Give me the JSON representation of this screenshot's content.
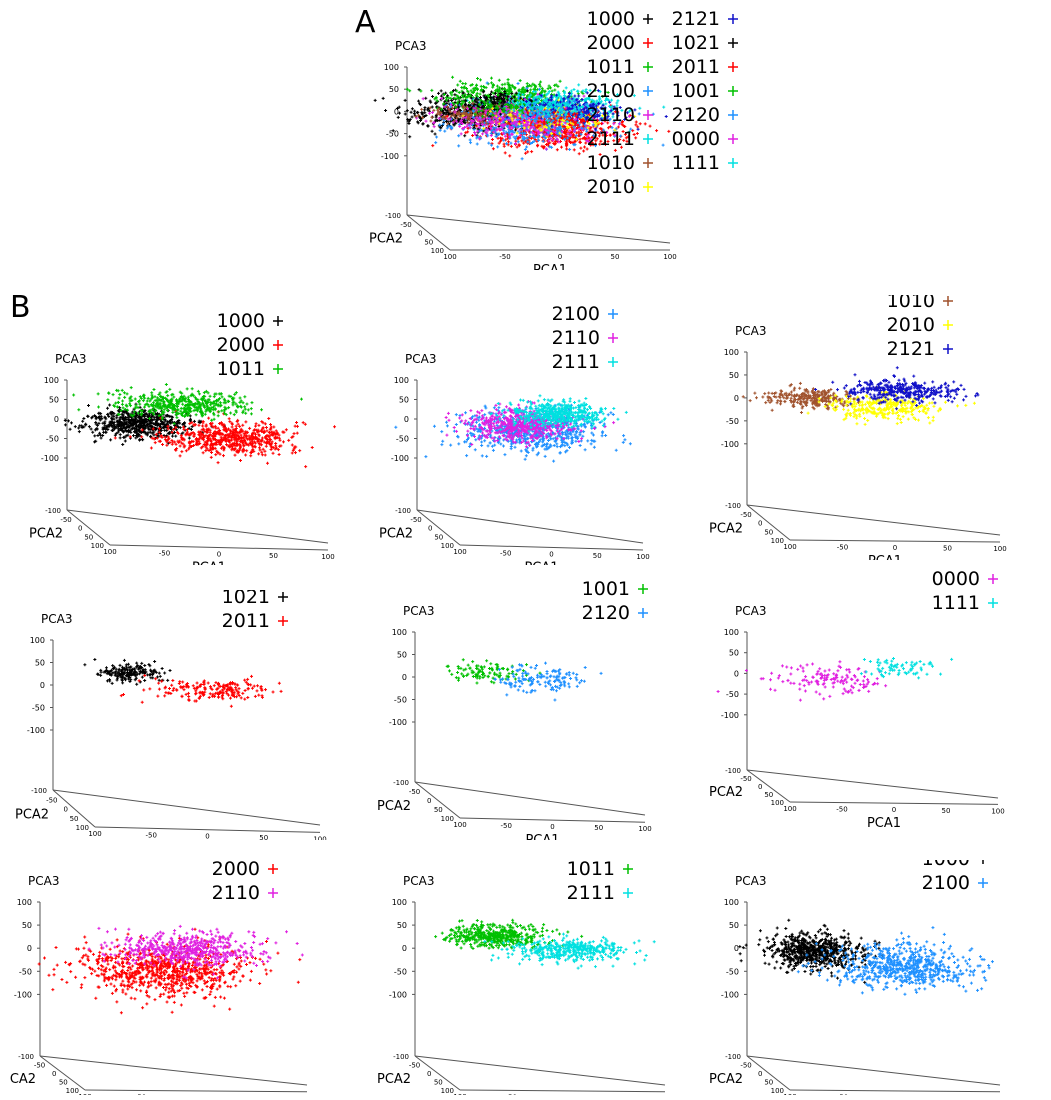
{
  "panel_labels": {
    "a": "A",
    "b": "B"
  },
  "series_colors": {
    "1000": "#000000",
    "2000": "#ff0000",
    "1011": "#00c000",
    "2100": "#1e90ff",
    "2110": "#e020e0",
    "2111": "#00e0e0",
    "1010": "#a0522d",
    "2010": "#ffff00",
    "2121": "#1010c8",
    "1021": "#000000",
    "2011": "#ff0000",
    "1001": "#00c000",
    "2120": "#1e90ff",
    "0000": "#e020e0",
    "1111": "#00e0e0"
  },
  "chart_data": [
    {
      "panel": "A",
      "type": "scatter",
      "title": "",
      "xlabel": "PCA1",
      "ylabel": "PCA2",
      "zlabel": "PCA3",
      "z_ticks": [
        "100",
        "50",
        "0",
        "-50",
        "-100"
      ],
      "y_ticks": [
        "-100",
        "-50",
        "0",
        "50",
        "100"
      ],
      "x_ticks": [
        "100",
        "-50",
        "0",
        "50",
        "100"
      ],
      "legend": "top-right",
      "series": [
        {
          "name": "1000",
          "center": [
            -50,
            -20,
            -10
          ],
          "spread": [
            25,
            15,
            20
          ],
          "count": 500
        },
        {
          "name": "2000",
          "center": [
            10,
            20,
            -40
          ],
          "spread": [
            30,
            20,
            20
          ],
          "count": 500
        },
        {
          "name": "1011",
          "center": [
            -10,
            -30,
            25
          ],
          "spread": [
            30,
            15,
            15
          ],
          "count": 400
        },
        {
          "name": "2100",
          "center": [
            0,
            0,
            -25
          ],
          "spread": [
            35,
            20,
            25
          ],
          "count": 500
        },
        {
          "name": "2110",
          "center": [
            -5,
            0,
            -15
          ],
          "spread": [
            30,
            20,
            20
          ],
          "count": 400
        },
        {
          "name": "2111",
          "center": [
            30,
            -10,
            10
          ],
          "spread": [
            25,
            15,
            15
          ],
          "count": 400
        },
        {
          "name": "1010",
          "center": [
            -55,
            0,
            -5
          ],
          "spread": [
            20,
            10,
            10
          ],
          "count": 120
        },
        {
          "name": "2010",
          "center": [
            10,
            5,
            -15
          ],
          "spread": [
            25,
            15,
            15
          ],
          "count": 150
        },
        {
          "name": "2121",
          "center": [
            40,
            -10,
            0
          ],
          "spread": [
            25,
            15,
            15
          ],
          "count": 200
        },
        {
          "name": "1021",
          "center": [
            -30,
            -10,
            20
          ],
          "spread": [
            15,
            10,
            10
          ],
          "count": 100
        },
        {
          "name": "2011",
          "center": [
            15,
            5,
            -15
          ],
          "spread": [
            20,
            10,
            10
          ],
          "count": 100
        },
        {
          "name": "1001",
          "center": [
            -25,
            0,
            5
          ],
          "spread": [
            15,
            10,
            10
          ],
          "count": 60
        },
        {
          "name": "2120",
          "center": [
            10,
            0,
            -5
          ],
          "spread": [
            20,
            10,
            15
          ],
          "count": 80
        },
        {
          "name": "0000",
          "center": [
            -30,
            0,
            -25
          ],
          "spread": [
            25,
            10,
            20
          ],
          "count": 80
        },
        {
          "name": "1111",
          "center": [
            15,
            0,
            5
          ],
          "spread": [
            15,
            10,
            10
          ],
          "count": 50
        }
      ]
    },
    {
      "panel": "B1",
      "type": "scatter",
      "title": "",
      "xlabel": "PCA1",
      "ylabel": "PCA2",
      "zlabel": "PCA3",
      "z_ticks": [
        "100",
        "50",
        "0",
        "-50",
        "-100"
      ],
      "y_ticks": [
        "-100",
        "-50",
        "0",
        "50",
        "100"
      ],
      "x_ticks": [
        "100",
        "-50",
        "0",
        "50",
        "100"
      ],
      "legend": "top-right",
      "series": [
        {
          "name": "1000",
          "center": [
            -45,
            -10,
            -15
          ],
          "spread": [
            22,
            15,
            18
          ],
          "count": 600
        },
        {
          "name": "2000",
          "center": [
            25,
            15,
            -45
          ],
          "spread": [
            30,
            18,
            20
          ],
          "count": 600
        },
        {
          "name": "1011",
          "center": [
            5,
            -35,
            25
          ],
          "spread": [
            30,
            12,
            15
          ],
          "count": 450
        }
      ]
    },
    {
      "panel": "B2",
      "type": "scatter",
      "title": "",
      "xlabel": "PCA1",
      "ylabel": "PCA2",
      "zlabel": "PCA3",
      "z_ticks": [
        "100",
        "50",
        "0",
        "-50",
        "-100"
      ],
      "y_ticks": [
        "-100",
        "-50",
        "0",
        "50",
        "100"
      ],
      "x_ticks": [
        "100",
        "-50",
        "0",
        "50",
        "100"
      ],
      "legend": "top-right",
      "series": [
        {
          "name": "2100",
          "center": [
            0,
            10,
            -30
          ],
          "spread": [
            35,
            20,
            25
          ],
          "count": 650
        },
        {
          "name": "2110",
          "center": [
            -5,
            0,
            -15
          ],
          "spread": [
            28,
            15,
            20
          ],
          "count": 500
        },
        {
          "name": "2111",
          "center": [
            40,
            -15,
            10
          ],
          "spread": [
            22,
            12,
            15
          ],
          "count": 450
        }
      ]
    },
    {
      "panel": "B3",
      "type": "scatter",
      "title": "",
      "xlabel": "PCA1",
      "ylabel": "PCA2",
      "zlabel": "PCA3",
      "z_ticks": [
        "100",
        "50",
        "0",
        "-50",
        "-100"
      ],
      "y_ticks": [
        "-100",
        "-50",
        "0",
        "50",
        "100"
      ],
      "x_ticks": [
        "100",
        "-50",
        "0",
        "50",
        "100"
      ],
      "legend": "top-right",
      "series": [
        {
          "name": "1010",
          "center": [
            -55,
            0,
            0
          ],
          "spread": [
            20,
            10,
            10
          ],
          "count": 250
        },
        {
          "name": "2010",
          "center": [
            15,
            5,
            -20
          ],
          "spread": [
            25,
            12,
            15
          ],
          "count": 300
        },
        {
          "name": "2121",
          "center": [
            35,
            -15,
            10
          ],
          "spread": [
            25,
            12,
            12
          ],
          "count": 350
        }
      ]
    },
    {
      "panel": "B4",
      "type": "scatter",
      "title": "",
      "xlabel": "PCA1",
      "ylabel": "PCA2",
      "zlabel": "PCA3",
      "z_ticks": [
        "100",
        "50",
        "0",
        "-50",
        "-100"
      ],
      "y_ticks": [
        "-100",
        "-50",
        "0",
        "50",
        "100"
      ],
      "x_ticks": [
        "100",
        "-50",
        "0",
        "50",
        "100"
      ],
      "legend": "top-right",
      "series": [
        {
          "name": "1021",
          "center": [
            -40,
            -10,
            25
          ],
          "spread": [
            15,
            10,
            10
          ],
          "count": 180
        },
        {
          "name": "2011",
          "center": [
            25,
            5,
            -10
          ],
          "spread": [
            25,
            10,
            12
          ],
          "count": 200
        }
      ]
    },
    {
      "panel": "B5",
      "type": "scatter",
      "title": "",
      "xlabel": "PCA1",
      "ylabel": "PCA2",
      "zlabel": "PCA3",
      "z_ticks": [
        "100",
        "50",
        "0",
        "-50",
        "-100"
      ],
      "y_ticks": [
        "-100",
        "-50",
        "0",
        "50",
        "100"
      ],
      "x_ticks": [
        "100",
        "-50",
        "0",
        "50",
        "100"
      ],
      "legend": "top-right",
      "series": [
        {
          "name": "1001",
          "center": [
            -40,
            0,
            10
          ],
          "spread": [
            20,
            10,
            10
          ],
          "count": 100
        },
        {
          "name": "2120",
          "center": [
            20,
            -5,
            -5
          ],
          "spread": [
            25,
            10,
            15
          ],
          "count": 140
        }
      ]
    },
    {
      "panel": "B6",
      "type": "scatter",
      "title": "",
      "xlabel": "PCA1",
      "ylabel": "PCA2",
      "zlabel": "PCA3",
      "z_ticks": [
        "100",
        "50",
        "0",
        "-50",
        "-100"
      ],
      "y_ticks": [
        "-100",
        "-50",
        "0",
        "50",
        "100"
      ],
      "x_ticks": [
        "100",
        "-50",
        "0",
        "50",
        "100"
      ],
      "legend": "top-right",
      "series": [
        {
          "name": "0000",
          "center": [
            -35,
            0,
            -15
          ],
          "spread": [
            28,
            10,
            20
          ],
          "count": 140
        },
        {
          "name": "1111",
          "center": [
            35,
            -5,
            15
          ],
          "spread": [
            18,
            10,
            12
          ],
          "count": 70
        }
      ]
    },
    {
      "panel": "B7",
      "type": "scatter",
      "title": "",
      "xlabel": "PCA1",
      "ylabel": "PCA2",
      "zlabel": "PCA3",
      "z_ticks": [
        "100",
        "50",
        "0",
        "-50",
        "-100"
      ],
      "y_ticks": [
        "-100",
        "-50",
        "0",
        "50",
        "100"
      ],
      "x_ticks": [
        "100",
        "-50",
        "0",
        "50",
        "100"
      ],
      "legend": "top-right",
      "series": [
        {
          "name": "2000",
          "center": [
            -10,
            10,
            -45
          ],
          "spread": [
            35,
            20,
            25
          ],
          "count": 800
        },
        {
          "name": "2110",
          "center": [
            20,
            -10,
            -5
          ],
          "spread": [
            30,
            15,
            18
          ],
          "count": 500
        }
      ]
    },
    {
      "panel": "B8",
      "type": "scatter",
      "title": "",
      "xlabel": "PCA1",
      "ylabel": "PCA2",
      "zlabel": "PCA3",
      "z_ticks": [
        "100",
        "50",
        "0",
        "-50",
        "-100"
      ],
      "y_ticks": [
        "-100",
        "-50",
        "0",
        "50",
        "100"
      ],
      "x_ticks": [
        "100",
        "-50",
        "0",
        "50",
        "100"
      ],
      "legend": "top-right",
      "series": [
        {
          "name": "1011",
          "center": [
            -35,
            -5,
            25
          ],
          "spread": [
            22,
            10,
            12
          ],
          "count": 450
        },
        {
          "name": "2111",
          "center": [
            30,
            0,
            -5
          ],
          "spread": [
            28,
            10,
            12
          ],
          "count": 400
        }
      ]
    },
    {
      "panel": "B9",
      "type": "scatter",
      "title": "",
      "xlabel": "PCA1",
      "ylabel": "PCA2",
      "zlabel": "PCA3",
      "z_ticks": [
        "100",
        "50",
        "0",
        "-50",
        "-100"
      ],
      "y_ticks": [
        "-100",
        "-50",
        "0",
        "50",
        "100"
      ],
      "x_ticks": [
        "100",
        "-50",
        "0",
        "50",
        "100"
      ],
      "legend": "top-right",
      "series": [
        {
          "name": "1000",
          "center": [
            -45,
            -10,
            -10
          ],
          "spread": [
            22,
            15,
            18
          ],
          "count": 650
        },
        {
          "name": "2100",
          "center": [
            25,
            15,
            -35
          ],
          "spread": [
            30,
            18,
            22
          ],
          "count": 650
        }
      ]
    }
  ]
}
